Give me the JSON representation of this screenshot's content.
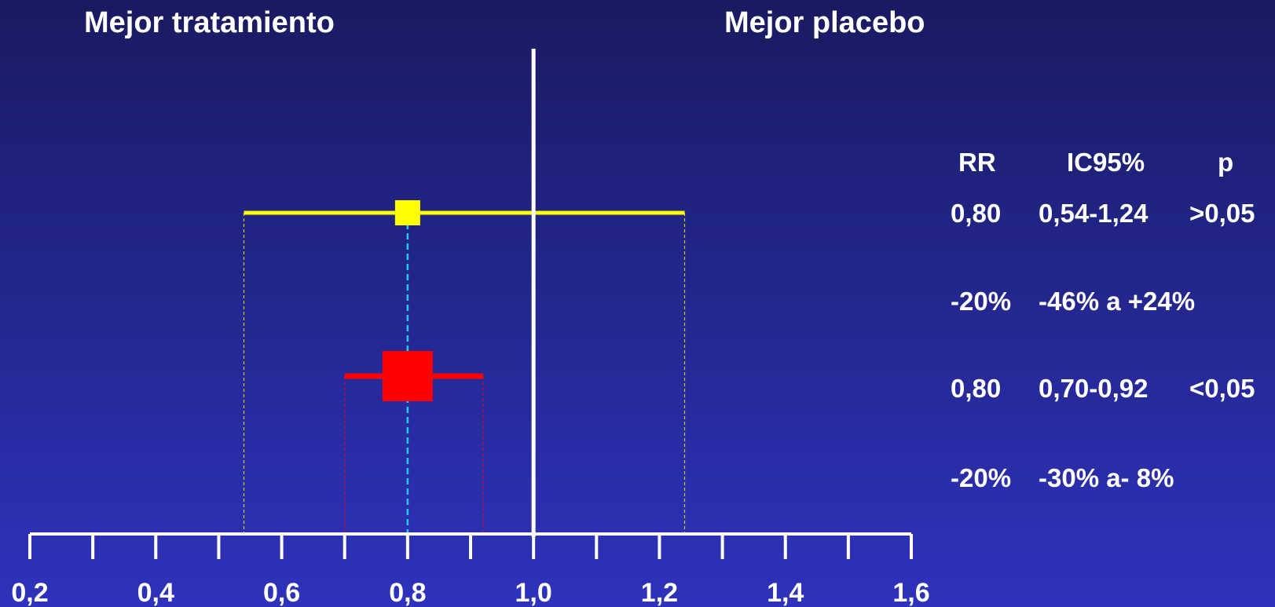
{
  "headings": {
    "left": "Mejor tratamiento",
    "right": "Mejor placebo"
  },
  "table": {
    "columns": [
      "RR",
      "IC95%",
      "p"
    ],
    "rows": [
      {
        "rr": "0,80",
        "ic": "0,54-1,24",
        "p": ">0,05"
      },
      {
        "rr": "-20%",
        "ic": "-46% a +24%",
        "p": ""
      },
      {
        "rr": "0,80",
        "ic": "0,70-0,92",
        "p": "<0,05"
      },
      {
        "rr": "-20%",
        "ic": "-30% a- 8%",
        "p": ""
      }
    ]
  },
  "chart_data": {
    "type": "scatter",
    "subtype": "forest-plot",
    "xlim": [
      0.2,
      1.6
    ],
    "major_ticks": [
      0.2,
      0.4,
      0.6,
      0.8,
      1.0,
      1.2,
      1.4,
      1.6
    ],
    "minor_ticks": [
      0.3,
      0.5,
      0.7,
      0.9,
      1.1,
      1.3,
      1.5
    ],
    "tick_labels": [
      "0,2",
      "0,4",
      "0,6",
      "0,8",
      "1,0",
      "1,2",
      "1,4",
      "1,6"
    ],
    "reference_line": 1.0,
    "estimates": [
      {
        "rr": 0.8,
        "ci_low": 0.54,
        "ci_high": 1.24,
        "color": "#ffff00",
        "marker": "small-square"
      },
      {
        "rr": 0.8,
        "ci_low": 0.7,
        "ci_high": 0.92,
        "color": "#ff0000",
        "marker": "large-square"
      }
    ]
  },
  "colors": {
    "axis": "#ffffff",
    "guide_dashed": "#22ccee",
    "yellow": "#ffff00",
    "red": "#ff0000"
  }
}
